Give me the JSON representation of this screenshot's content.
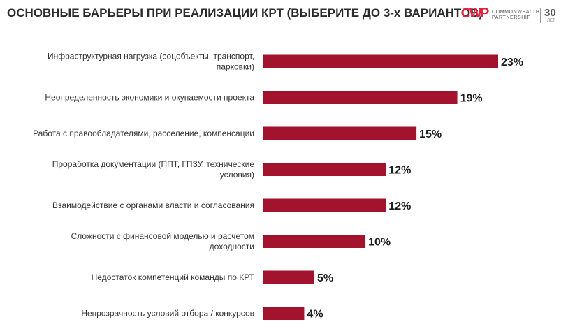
{
  "header": {
    "title": "ОСНОВНЫЕ БАРЬЕРЫ ПРИ РЕАЛИЗАЦИИ КРТ (ВЫБЕРИТЕ ДО 3-х ВАРИАНТОВ)"
  },
  "logo": {
    "mark": "CWP",
    "line1": "COMMONWEALTH",
    "line2": "PARTNERSHIP",
    "years": "30",
    "years_sub": "ЛЕТ"
  },
  "colors": {
    "bar": "#a3132e",
    "logo_accent": "#e2223e"
  },
  "chart_data": {
    "type": "bar",
    "orientation": "horizontal",
    "title": "ОСНОВНЫЕ БАРЬЕРЫ ПРИ РЕАЛИЗАЦИИ КРТ (ВЫБЕРИТЕ ДО 3-х ВАРИАНТОВ)",
    "categories": [
      [
        "Инфраструктурная нагрузка (соцобъекты, транспорт,",
        "парковки)"
      ],
      [
        "Неопределенность экономики и окупаемости проекта"
      ],
      [
        "Работа с правообладателями, расселение, компенсации"
      ],
      [
        "Проработка документации (ППТ, ГПЗУ, технические",
        "условия)"
      ],
      [
        "Взаимодействие с органами власти и согласования"
      ],
      [
        "Сложности с финансовой моделью и расчетом",
        "доходности"
      ],
      [
        "Недостаток компетенций команды по КРТ"
      ],
      [
        "Непрозрачность условий отбора / конкурсов"
      ]
    ],
    "values": [
      23,
      19,
      15,
      12,
      12,
      10,
      5,
      4
    ],
    "value_labels": [
      "23%",
      "19%",
      "15%",
      "12%",
      "12%",
      "10%",
      "5%",
      "4%"
    ],
    "unit": "%",
    "xlim": [
      0,
      23
    ],
    "grid": false,
    "legend": "none"
  }
}
